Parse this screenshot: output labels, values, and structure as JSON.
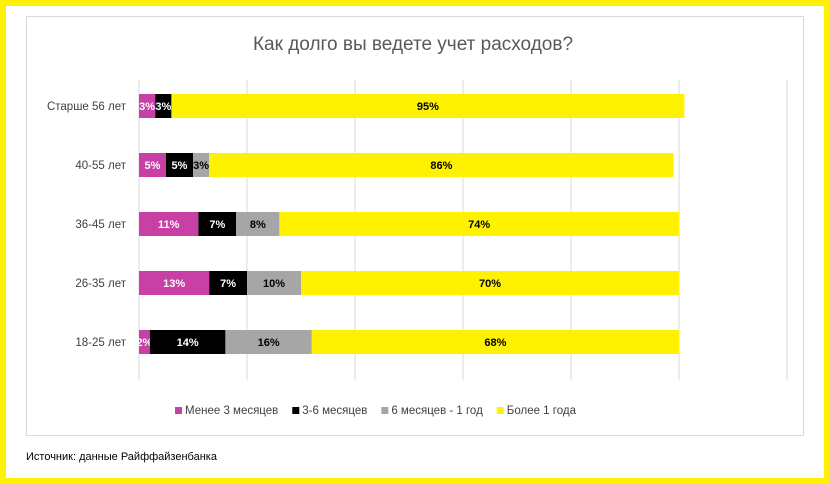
{
  "chart_data": {
    "type": "bar",
    "orientation": "horizontal",
    "stacked": true,
    "title": "Как долго вы ведете учет расходов?",
    "categories": [
      "Старше 56 лет",
      "40-55 лет",
      "36-45 лет",
      "26-35 лет",
      "18-25 лет"
    ],
    "series": [
      {
        "name": "Менее 3 месяцев",
        "color": "#c83fa5",
        "text_color": "#ffffff",
        "values": [
          3,
          5,
          11,
          13,
          2
        ]
      },
      {
        "name": "3-6 месяцев",
        "color": "#000000",
        "text_color": "#ffffff",
        "values": [
          3,
          5,
          7,
          7,
          14
        ]
      },
      {
        "name": "6 месяцев - 1 год",
        "color": "#a6a6a6",
        "text_color": "#000000",
        "values": [
          0,
          3,
          8,
          10,
          16
        ]
      },
      {
        "name": "Более 1 года",
        "color": "#fff200",
        "text_color": "#000000",
        "values": [
          95,
          86,
          74,
          70,
          68
        ]
      }
    ],
    "value_suffix": "%",
    "xlim": [
      0,
      120
    ],
    "grid": true,
    "legend_position": "bottom"
  },
  "footer": {
    "source": "Источник: данные Райффайзенбанка"
  }
}
